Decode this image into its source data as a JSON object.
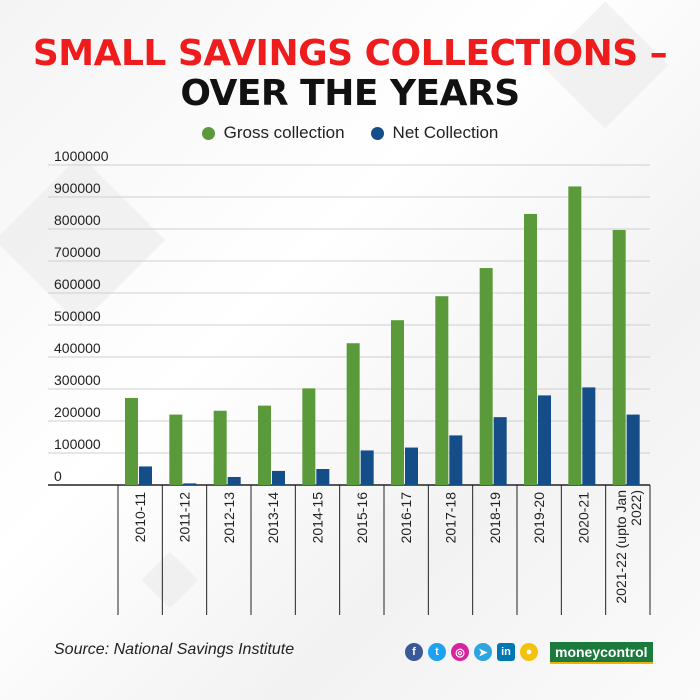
{
  "title": {
    "line1": "SMALL SAVINGS COLLECTIONS –",
    "line2": "OVER THE YEARS"
  },
  "legend": {
    "gross_label": "Gross collection",
    "net_label": "Net Collection"
  },
  "colors": {
    "gross": "#5a9a3a",
    "net": "#144d87",
    "title_red": "#ee1c1c"
  },
  "chart_data": {
    "type": "bar",
    "title": "SMALL SAVINGS COLLECTIONS – OVER THE YEARS",
    "xlabel": "",
    "ylabel": "",
    "ylim": [
      0,
      1000000
    ],
    "yticks": [
      "1000000",
      "900000",
      "800000",
      "700000",
      "600000",
      "500000",
      "400000",
      "300000",
      "200000",
      "100000",
      "0"
    ],
    "categories": [
      "2010-11",
      "2011-12",
      "2012-13",
      "2013-14",
      "2014-15",
      "2015-16",
      "2016-17",
      "2017-18",
      "2018-19",
      "2019-20",
      "2020-21",
      "2021-22 (upto Jan 2022)"
    ],
    "series": [
      {
        "name": "Gross collection",
        "values": [
          272000,
          220000,
          232000,
          248000,
          302000,
          443000,
          515000,
          590000,
          678000,
          847000,
          933000,
          797000
        ]
      },
      {
        "name": "Net Collection",
        "values": [
          58000,
          5000,
          25000,
          44000,
          50000,
          108000,
          117000,
          155000,
          212000,
          280000,
          305000,
          220000
        ]
      }
    ],
    "legend_position": "top-center",
    "grid": true
  },
  "footer": {
    "source": "Source: National Savings Institute",
    "brand": "moneycontrol",
    "social_icons": [
      "facebook-icon",
      "twitter-icon",
      "instagram-icon",
      "telegram-icon",
      "linkedin-icon",
      "koo-icon"
    ]
  }
}
